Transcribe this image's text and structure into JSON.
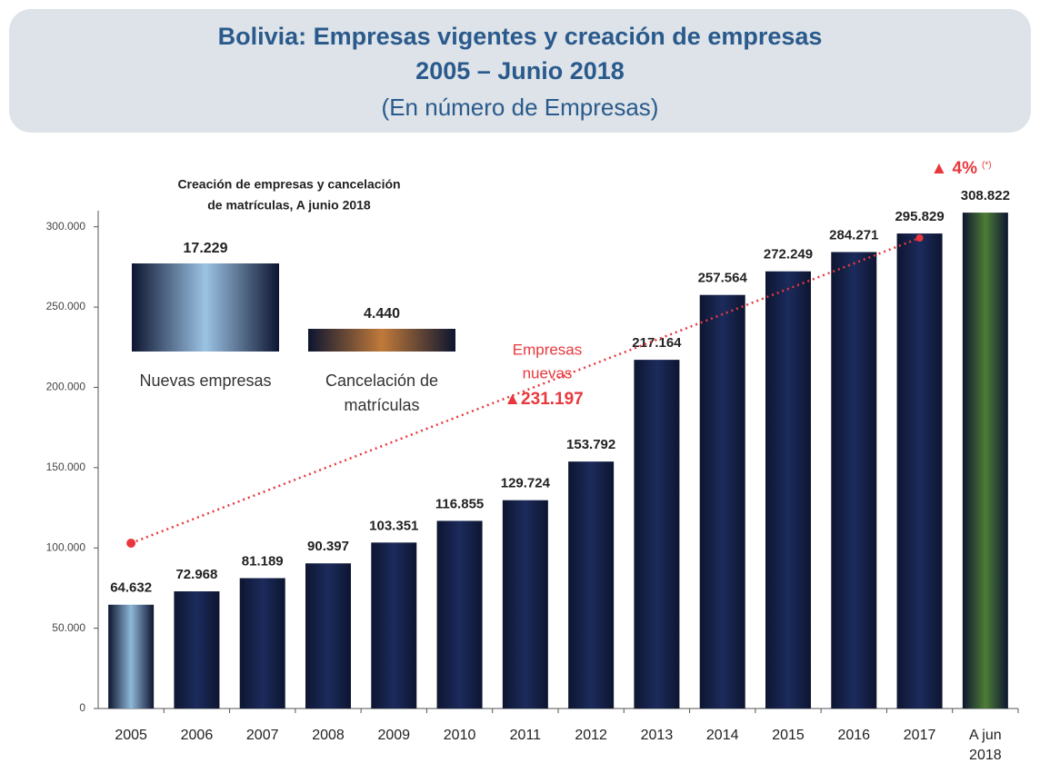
{
  "chart_data": {
    "type": "bar",
    "title": "Bolivia: Empresas vigentes y creación de empresas",
    "subtitle": "2005 – Junio 2018",
    "subtitle2": "(En número de Empresas)",
    "categories": [
      "2005",
      "2006",
      "2007",
      "2008",
      "2009",
      "2010",
      "2011",
      "2012",
      "2013",
      "2014",
      "2015",
      "2016",
      "2017",
      "A jun 2018"
    ],
    "values": [
      64632,
      72968,
      81189,
      90397,
      103351,
      116855,
      129724,
      153792,
      217164,
      257564,
      272249,
      284271,
      295829,
      308822
    ],
    "value_labels": [
      "64.632",
      "72.968",
      "81.189",
      "90.397",
      "103.351",
      "116.855",
      "129.724",
      "153.792",
      "217.164",
      "257.564",
      "272.249",
      "284.271",
      "295.829",
      "308.822"
    ],
    "colors": [
      "#8fb8d8",
      "#1c2b5c",
      "#1c2b5c",
      "#1c2b5c",
      "#1c2b5c",
      "#1c2b5c",
      "#1c2b5c",
      "#1c2b5c",
      "#1c2b5c",
      "#1c2b5c",
      "#1c2b5c",
      "#1c2b5c",
      "#1c2b5c",
      "#4d7d36"
    ],
    "ylim": [
      0,
      310000
    ],
    "yticks": [
      0,
      {
        "value": 50000,
        "label": "50.000"
      },
      {
        "value": 100000,
        "label": "100.000"
      },
      {
        "value": 150000,
        "label": "150.000"
      },
      {
        "value": 200000,
        "label": "200.000"
      },
      {
        "value": 250000,
        "label": "250.000"
      },
      {
        "value": 300000,
        "label": "300.000"
      }
    ],
    "annotations": [
      "Empresas",
      "nuevas",
      "▲231.197",
      "▲ 4%",
      "(*)"
    ],
    "inset": {
      "title": [
        "Creación de empresas y cancelación",
        "de matrículas, A junio 2018"
      ],
      "categories": [
        [
          "Nuevas empresas"
        ],
        [
          "Cancelación de",
          "matrículas"
        ]
      ],
      "values": [
        17229,
        4440
      ],
      "value_labels": [
        "17.229",
        "4.440"
      ],
      "colors": [
        "#9cc3e4",
        "#c07a3a"
      ]
    }
  }
}
